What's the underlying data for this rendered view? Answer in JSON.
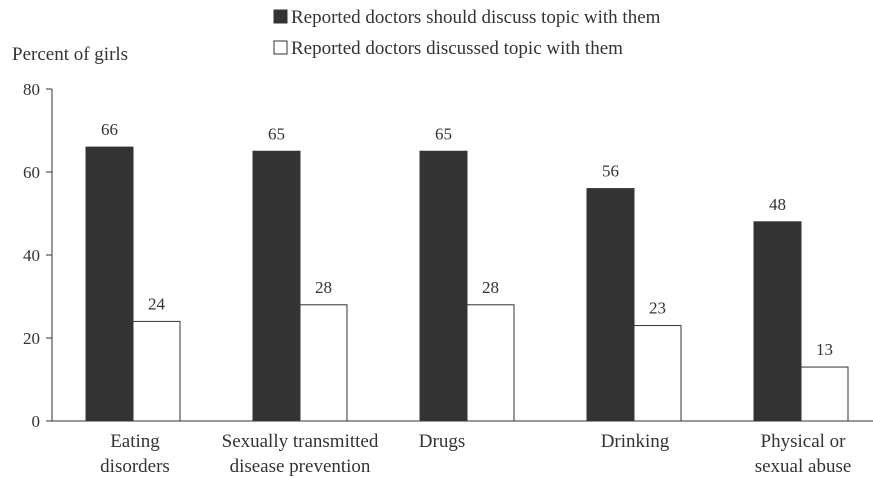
{
  "chart_data": {
    "type": "bar",
    "ylabel": "Percent of girls",
    "ylim": [
      0,
      80
    ],
    "yticks": [
      0,
      20,
      40,
      60,
      80
    ],
    "legend_position": "top",
    "grid": false,
    "categories": [
      [
        "Eating",
        "disorders"
      ],
      [
        "Sexually transmitted",
        "disease prevention"
      ],
      [
        "Drugs"
      ],
      [
        "Drinking"
      ],
      [
        "Physical or",
        "sexual abuse"
      ]
    ],
    "series": [
      {
        "name": "Reported doctors should discuss topic with them",
        "color": "#333333",
        "values": [
          66,
          65,
          65,
          56,
          48
        ]
      },
      {
        "name": "Reported doctors discussed topic with them",
        "color": "#ffffff",
        "values": [
          24,
          28,
          28,
          23,
          13
        ]
      }
    ]
  }
}
